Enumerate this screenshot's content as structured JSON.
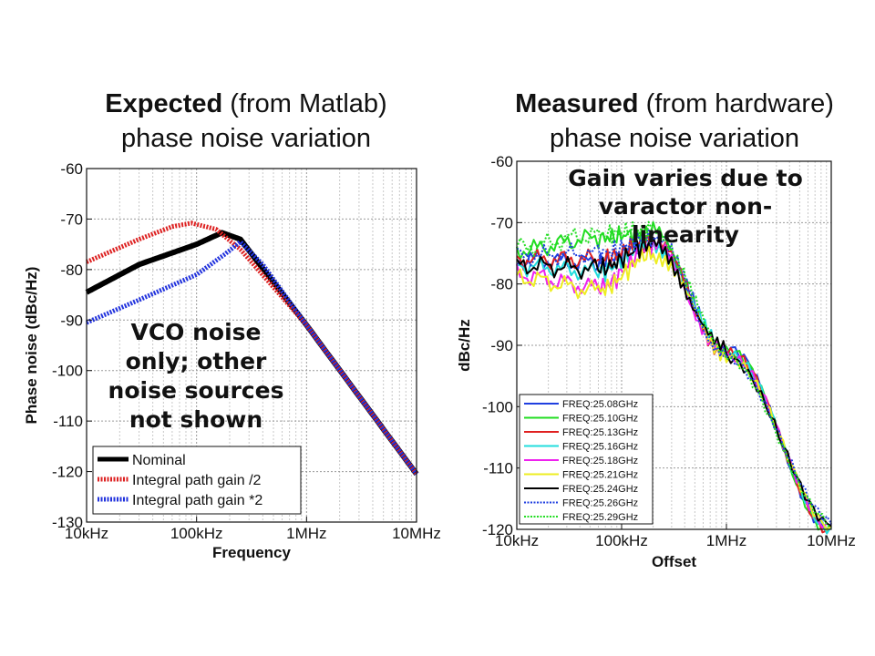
{
  "slide": {
    "left_title_bold": "Expected",
    "left_title_rest": " (from Matlab)",
    "left_title_line2": "phase noise variation",
    "right_title_bold": "Measured",
    "right_title_rest": " (from hardware)",
    "right_title_line2": "phase noise variation"
  },
  "chart_data": [
    {
      "type": "line",
      "xlabel": "Frequency",
      "ylabel": "Phase noise (dBc/Hz)",
      "xscale": "log",
      "xlim": [
        10000,
        10000000
      ],
      "ylim": [
        -130,
        -60
      ],
      "xticks": [
        10000,
        100000,
        1000000,
        10000000
      ],
      "xtick_labels": [
        "10kHz",
        "100kHz",
        "1MHz",
        "10MHz"
      ],
      "yticks": [
        -60,
        -70,
        -80,
        -90,
        -100,
        -110,
        -120,
        -130
      ],
      "ytick_labels": [
        "-60",
        "-70",
        "-80",
        "-90",
        "-100",
        "-110",
        "-120",
        "-130"
      ],
      "grid": true,
      "legend_position": "bottom-left",
      "annotation": [
        "VCO noise",
        "only; other",
        "noise sources",
        "not shown"
      ],
      "series": [
        {
          "name": "Nominal",
          "color": "#000000",
          "style": "solid",
          "x": [
            10000,
            30000,
            100000,
            170000,
            250000,
            1000000,
            10000000
          ],
          "y": [
            -84.5,
            -79,
            -75,
            -72.7,
            -74,
            -91,
            -120.5
          ]
        },
        {
          "name": "Integral path gain /2",
          "color": "#dd2222",
          "style": "dotted",
          "x": [
            10000,
            30000,
            60000,
            90000,
            150000,
            250000,
            1000000,
            10000000
          ],
          "y": [
            -78.5,
            -74,
            -71.5,
            -70.8,
            -72,
            -76,
            -91,
            -120.5
          ]
        },
        {
          "name": "Integral path gain *2",
          "color": "#2233dd",
          "style": "dotted",
          "x": [
            10000,
            30000,
            100000,
            180000,
            250000,
            400000,
            1000000,
            10000000
          ],
          "y": [
            -90.5,
            -86,
            -81,
            -77,
            -74.5,
            -79,
            -91,
            -120.5
          ]
        }
      ]
    },
    {
      "type": "line",
      "xlabel": "Offset",
      "ylabel": "dBc/Hz",
      "xscale": "log",
      "xlim": [
        10000,
        10000000
      ],
      "ylim": [
        -120,
        -60
      ],
      "xticks": [
        10000,
        100000,
        1000000,
        10000000
      ],
      "xtick_labels": [
        "10kHz",
        "100kHz",
        "1MHz",
        "10MHz"
      ],
      "yticks": [
        -60,
        -70,
        -80,
        -90,
        -100,
        -110,
        -120
      ],
      "ytick_labels": [
        "-60",
        "-70",
        "-80",
        "-90",
        "-100",
        "-110",
        "-120"
      ],
      "grid": true,
      "legend_position": "bottom-left",
      "annotation": [
        "Gain varies due to",
        "varactor non-",
        "linearity"
      ],
      "series": [
        {
          "name": "FREQ:25.08GHz",
          "color": "#1f3fe0",
          "style": "solid",
          "x": [
            10000,
            60000,
            200000,
            1000000,
            10000000
          ],
          "y": [
            -76,
            -76.5,
            -73,
            -91,
            -119
          ]
        },
        {
          "name": "FREQ:25.10GHz",
          "color": "#22dd22",
          "style": "solid",
          "x": [
            10000,
            60000,
            200000,
            1000000,
            10000000
          ],
          "y": [
            -74.5,
            -72.5,
            -71.5,
            -91,
            -119.5
          ]
        },
        {
          "name": "FREQ:25.13GHz",
          "color": "#e02020",
          "style": "solid",
          "x": [
            10000,
            60000,
            200000,
            1000000,
            10000000
          ],
          "y": [
            -76,
            -76,
            -73,
            -91,
            -119.5
          ]
        },
        {
          "name": "FREQ:25.16GHz",
          "color": "#22dddd",
          "style": "solid",
          "x": [
            10000,
            60000,
            200000,
            1000000,
            10000000
          ],
          "y": [
            -77,
            -78,
            -73.5,
            -91,
            -119.5
          ]
        },
        {
          "name": "FREQ:25.18GHz",
          "color": "#ee22ee",
          "style": "solid",
          "x": [
            10000,
            60000,
            200000,
            1000000,
            10000000
          ],
          "y": [
            -78.5,
            -80.5,
            -74,
            -91,
            -119.5
          ]
        },
        {
          "name": "FREQ:25.21GHz",
          "color": "#eeee22",
          "style": "solid",
          "x": [
            10000,
            60000,
            200000,
            1000000,
            10000000
          ],
          "y": [
            -79,
            -81,
            -75,
            -91,
            -119.5
          ]
        },
        {
          "name": "FREQ:25.24GHz",
          "color": "#000000",
          "style": "solid",
          "x": [
            10000,
            60000,
            200000,
            1000000,
            10000000
          ],
          "y": [
            -77,
            -77.5,
            -73.5,
            -91,
            -119.5
          ]
        },
        {
          "name": "FREQ:25.26GHz",
          "color": "#1f3fe0",
          "style": "dotted",
          "x": [
            10000,
            60000,
            200000,
            1000000,
            10000000
          ],
          "y": [
            -75.5,
            -75,
            -72.5,
            -91,
            -119
          ]
        },
        {
          "name": "FREQ:25.29GHz",
          "color": "#22dd22",
          "style": "dotted",
          "x": [
            10000,
            60000,
            200000,
            1000000,
            10000000
          ],
          "y": [
            -74,
            -72,
            -71,
            -91,
            -119.5
          ]
        }
      ]
    }
  ]
}
